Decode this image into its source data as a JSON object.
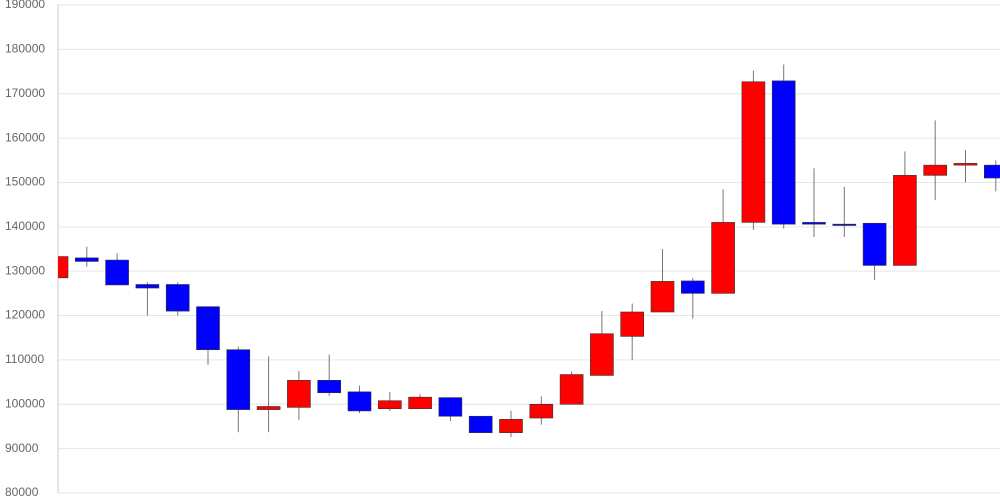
{
  "chart_data": {
    "type": "candlestick",
    "open": [
      128500,
      133000,
      132500,
      127000,
      127000,
      122000,
      112300,
      98800,
      99300,
      105400,
      102800,
      99000,
      99000,
      101500,
      97300,
      93600,
      96900,
      100000,
      106500,
      115300,
      120800,
      127800,
      125000,
      141000,
      172900,
      141000,
      140600,
      140800,
      131300,
      151600,
      153900,
      153900
    ],
    "close": [
      133300,
      132200,
      126900,
      126200,
      121000,
      112300,
      98800,
      99500,
      105400,
      102600,
      98500,
      100800,
      101600,
      97300,
      93600,
      96600,
      100000,
      106700,
      115900,
      120800,
      127700,
      125000,
      141000,
      172700,
      140600,
      140600,
      140300,
      131300,
      151600,
      153900,
      154300,
      151000
    ],
    "high": [
      134000,
      135500,
      134000,
      127500,
      127500,
      122000,
      113000,
      110800,
      107500,
      111200,
      104200,
      102800,
      102300,
      101600,
      97300,
      98500,
      101800,
      107400,
      121000,
      122700,
      135000,
      128500,
      148500,
      175200,
      176600,
      153200,
      149000,
      140800,
      157000,
      164000,
      157300,
      155000
    ],
    "low": [
      128000,
      131000,
      126800,
      120000,
      120000,
      108900,
      93700,
      93700,
      96500,
      101900,
      98000,
      98500,
      98900,
      96200,
      93600,
      92600,
      95400,
      100000,
      106500,
      110000,
      120800,
      119300,
      125000,
      139300,
      139600,
      137700,
      137700,
      128000,
      131300,
      146000,
      150000,
      148000
    ],
    "up_color": "#ff0000",
    "down_color": "#0000ff",
    "ylim": [
      80000,
      190000
    ],
    "yticks": [
      80000,
      90000,
      100000,
      110000,
      120000,
      130000,
      140000,
      150000,
      160000,
      170000,
      180000,
      190000
    ],
    "grid": true
  }
}
